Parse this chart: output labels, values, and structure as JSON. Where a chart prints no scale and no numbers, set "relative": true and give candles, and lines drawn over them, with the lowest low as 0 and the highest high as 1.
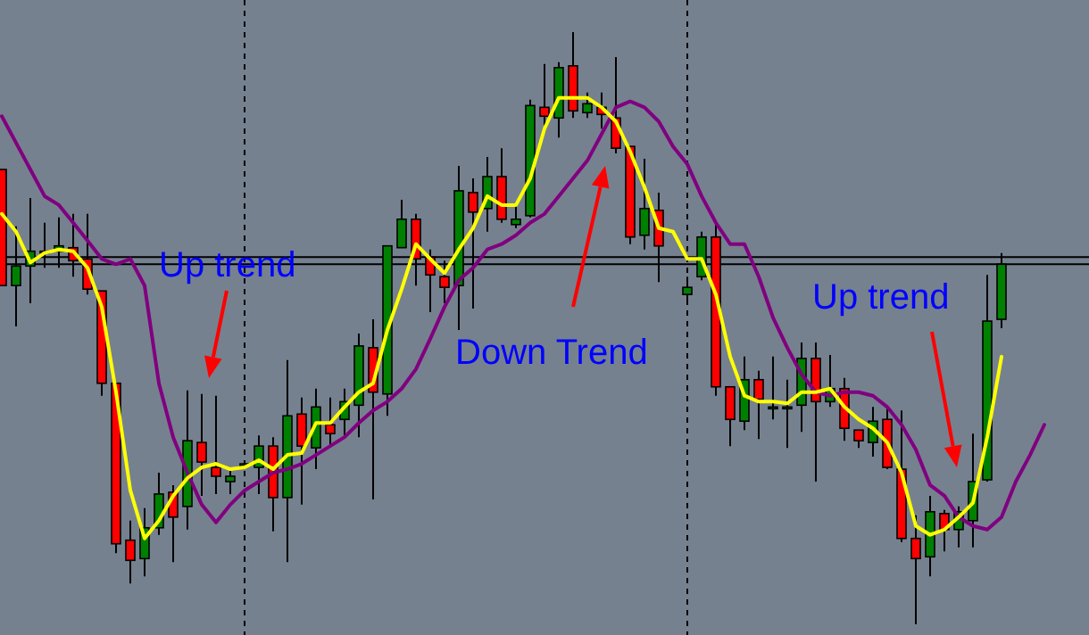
{
  "chart_data": {
    "type": "candlestick",
    "relative": true,
    "categories": [
      null,
      null,
      null,
      null,
      null,
      null,
      null,
      null,
      null,
      null,
      null,
      null,
      null,
      null,
      null,
      null,
      null,
      null,
      null,
      null,
      null,
      null,
      null,
      null,
      null,
      null,
      null,
      null,
      null,
      null,
      null,
      null,
      null,
      null,
      null,
      null,
      null,
      null,
      null,
      null,
      null,
      null,
      null,
      null,
      null,
      null,
      null,
      null,
      null,
      null,
      null,
      null,
      null,
      null,
      null,
      null,
      null,
      null,
      null,
      null,
      null,
      null,
      null,
      null,
      null,
      null,
      null,
      null,
      null,
      null,
      null,
      null,
      null,
      null,
      null,
      null,
      null
    ],
    "ohlc": [
      [
        0.768,
        0.768,
        0.572,
        0.572
      ],
      [
        0.572,
        0.672,
        0.503,
        0.605
      ],
      [
        0.605,
        0.72,
        0.542,
        0.63
      ],
      [
        0.63,
        0.678,
        0.602,
        0.627
      ],
      [
        0.63,
        0.687,
        0.602,
        0.639
      ],
      [
        0.636,
        0.693,
        0.587,
        0.614
      ],
      [
        0.617,
        0.693,
        0.557,
        0.566
      ],
      [
        0.563,
        0.563,
        0.386,
        0.407
      ],
      [
        0.407,
        0.407,
        0.12,
        0.136
      ],
      [
        0.142,
        0.175,
        0.069,
        0.108
      ],
      [
        0.111,
        0.196,
        0.081,
        0.163
      ],
      [
        0.163,
        0.256,
        0.151,
        0.22
      ],
      [
        0.223,
        0.235,
        0.105,
        0.181
      ],
      [
        0.199,
        0.395,
        0.16,
        0.31
      ],
      [
        0.307,
        0.389,
        0.217,
        0.274
      ],
      [
        0.265,
        0.386,
        0.22,
        0.25
      ],
      [
        0.241,
        0.265,
        0.22,
        0.25
      ],
      [
        0.271,
        0.277,
        0.265,
        0.271
      ],
      [
        0.265,
        0.319,
        0.22,
        0.301
      ],
      [
        0.301,
        0.316,
        0.157,
        0.214
      ],
      [
        0.214,
        0.446,
        0.105,
        0.352
      ],
      [
        0.355,
        0.383,
        0.202,
        0.301
      ],
      [
        0.298,
        0.398,
        0.262,
        0.367
      ],
      [
        0.337,
        0.383,
        0.301,
        0.322
      ],
      [
        0.346,
        0.398,
        0.316,
        0.376
      ],
      [
        0.37,
        0.491,
        0.316,
        0.47
      ],
      [
        0.467,
        0.515,
        0.211,
        0.392
      ],
      [
        0.389,
        0.639,
        0.352,
        0.639
      ],
      [
        0.636,
        0.717,
        0.636,
        0.684
      ],
      [
        0.684,
        0.693,
        0.572,
        0.617
      ],
      [
        0.62,
        0.633,
        0.527,
        0.59
      ],
      [
        0.587,
        0.614,
        0.542,
        0.569
      ],
      [
        0.572,
        0.774,
        0.497,
        0.732
      ],
      [
        0.729,
        0.753,
        0.533,
        0.696
      ],
      [
        0.702,
        0.789,
        0.663,
        0.756
      ],
      [
        0.756,
        0.804,
        0.678,
        0.684
      ],
      [
        0.675,
        0.708,
        0.669,
        0.684
      ],
      [
        0.69,
        0.886,
        0.687,
        0.876
      ],
      [
        0.873,
        0.946,
        0.843,
        0.858
      ],
      [
        0.855,
        0.949,
        0.822,
        0.94
      ],
      [
        0.943,
        1.0,
        0.855,
        0.867
      ],
      [
        0.864,
        0.898,
        0.855,
        0.879
      ],
      [
        0.873,
        0.898,
        0.837,
        0.861
      ],
      [
        0.855,
        0.958,
        0.795,
        0.804
      ],
      [
        0.807,
        0.807,
        0.642,
        0.654
      ],
      [
        0.657,
        0.786,
        0.633,
        0.702
      ],
      [
        0.699,
        0.729,
        0.578,
        0.639
      ],
      null,
      [
        0.557,
        0.587,
        0.539,
        0.569
      ],
      [
        0.587,
        0.663,
        0.581,
        0.654
      ],
      [
        0.654,
        0.678,
        0.386,
        0.401
      ],
      [
        0.401,
        0.401,
        0.301,
        0.346
      ],
      [
        0.343,
        0.452,
        0.328,
        0.413
      ],
      [
        0.413,
        0.428,
        0.313,
        0.38
      ],
      [
        0.367,
        0.452,
        0.346,
        0.367
      ],
      [
        0.367,
        0.413,
        0.298,
        0.367
      ],
      [
        0.37,
        0.476,
        0.325,
        0.449
      ],
      [
        0.449,
        0.476,
        0.241,
        0.376
      ],
      [
        0.376,
        0.455,
        0.367,
        0.398
      ],
      [
        0.398,
        0.416,
        0.31,
        0.331
      ],
      [
        0.328,
        0.328,
        0.298,
        0.31
      ],
      [
        0.307,
        0.367,
        0.283,
        0.343
      ],
      [
        0.346,
        0.367,
        0.262,
        0.265
      ],
      [
        0.262,
        0.361,
        0.139,
        0.145
      ],
      [
        0.145,
        0.184,
        0.0,
        0.111
      ],
      [
        0.114,
        0.217,
        0.081,
        0.19
      ],
      [
        0.187,
        0.193,
        0.123,
        0.16
      ],
      [
        0.16,
        0.199,
        0.13,
        0.19
      ],
      [
        0.175,
        0.322,
        0.13,
        0.241
      ],
      [
        0.244,
        0.59,
        0.241,
        0.512
      ],
      [
        0.515,
        0.627,
        0.5,
        0.608
      ],
      null,
      null,
      null,
      null,
      null,
      null
    ],
    "colors": [
      "#ff0000",
      "#008000",
      "#008000",
      "#ff0000",
      "#008000",
      "#ff0000",
      "#ff0000",
      "#ff0000",
      "#ff0000",
      "#ff0000",
      "#008000",
      "#008000",
      "#ff0000",
      "#008000",
      "#ff0000",
      "#ff0000",
      "#008000",
      "#008000",
      "#008000",
      "#ff0000",
      "#008000",
      "#ff0000",
      "#008000",
      "#ff0000",
      "#008000",
      "#008000",
      "#ff0000",
      "#008000",
      "#008000",
      "#ff0000",
      "#ff0000",
      "#ff0000",
      "#008000",
      "#ff0000",
      "#008000",
      "#ff0000",
      "#008000",
      "#008000",
      "#ff0000",
      "#008000",
      "#ff0000",
      "#008000",
      "#ff0000",
      "#ff0000",
      "#ff0000",
      "#008000",
      "#ff0000",
      null,
      "#008000",
      "#008000",
      "#ff0000",
      "#ff0000",
      "#008000",
      "#ff0000",
      "#008000",
      "#008000",
      "#008000",
      "#ff0000",
      "#008000",
      "#ff0000",
      "#ff0000",
      "#008000",
      "#ff0000",
      "#ff0000",
      "#ff0000",
      "#008000",
      "#ff0000",
      "#008000",
      "#008000",
      "#008000",
      "#008000",
      null,
      null,
      null,
      null,
      null,
      null
    ],
    "series": [
      {
        "type": "line",
        "color": "#800080",
        "values": [
          0.858,
          0.813,
          0.768,
          0.723,
          0.708,
          0.678,
          0.648,
          0.617,
          0.608,
          0.617,
          0.572,
          0.407,
          0.316,
          0.256,
          0.202,
          0.172,
          0.202,
          0.226,
          0.241,
          0.256,
          0.262,
          0.271,
          0.286,
          0.301,
          0.316,
          0.34,
          0.361,
          0.376,
          0.398,
          0.431,
          0.482,
          0.536,
          0.581,
          0.602,
          0.633,
          0.642,
          0.657,
          0.678,
          0.693,
          0.723,
          0.753,
          0.783,
          0.828,
          0.873,
          0.883,
          0.873,
          0.849,
          0.807,
          0.777,
          0.723,
          0.678,
          0.642,
          0.642,
          0.587,
          0.518,
          0.467,
          0.422,
          0.392,
          0.386,
          0.392,
          0.392,
          0.386,
          0.367,
          0.337,
          0.295,
          0.235,
          0.217,
          0.181,
          0.166,
          0.16,
          0.181,
          0.241,
          0.286,
          0.337,
          null,
          null,
          null
        ]
      },
      {
        "type": "line",
        "color": "#ffff00",
        "values": [
          0.693,
          0.663,
          0.611,
          0.627,
          0.633,
          0.63,
          0.602,
          0.536,
          0.392,
          0.226,
          0.145,
          0.175,
          0.217,
          0.247,
          0.265,
          0.271,
          0.262,
          0.265,
          0.277,
          0.262,
          0.286,
          0.289,
          0.34,
          0.34,
          0.367,
          0.392,
          0.407,
          0.497,
          0.566,
          0.642,
          0.617,
          0.593,
          0.633,
          0.669,
          0.723,
          0.708,
          0.708,
          0.753,
          0.837,
          0.889,
          0.889,
          0.889,
          0.873,
          0.849,
          0.798,
          0.738,
          0.669,
          0.663,
          0.617,
          0.617,
          0.557,
          0.452,
          0.386,
          0.376,
          0.376,
          0.373,
          0.392,
          0.392,
          0.398,
          0.367,
          0.346,
          0.331,
          0.307,
          0.256,
          0.166,
          0.151,
          0.16,
          0.181,
          0.205,
          0.316,
          0.452,
          null,
          null,
          null,
          null,
          null,
          null
        ]
      }
    ],
    "ref_lines": [
      {
        "axis": "y",
        "value": 0.62,
        "color": "#000000"
      },
      {
        "axis": "y",
        "value": 0.608,
        "color": "#000000"
      }
    ],
    "annotations": [
      "Up trend",
      "Down Trend",
      "Up trend"
    ]
  }
}
